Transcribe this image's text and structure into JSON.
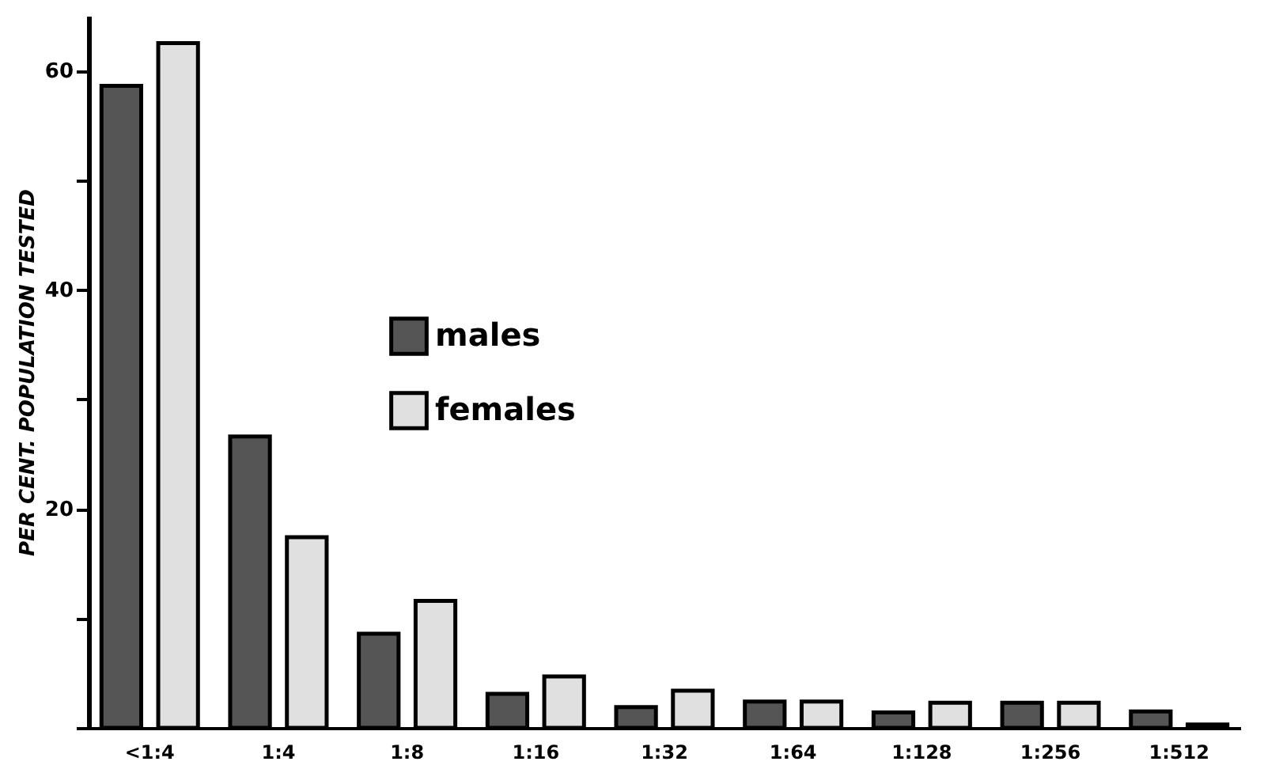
{
  "chart_data": {
    "type": "bar",
    "ylabel": "PER CENT. POPULATION TESTED",
    "categories": [
      "<1:4",
      "1:4",
      "1:8",
      "1:16",
      "1:32",
      "1:64",
      "1:128",
      "1:256",
      "1:512"
    ],
    "series": [
      {
        "name": "males",
        "color": "#555555",
        "values": [
          58.6,
          26.6,
          8.6,
          3.1,
          1.9,
          2.4,
          1.4,
          2.3,
          1.5
        ]
      },
      {
        "name": "females",
        "color": "#e0e0e0",
        "values": [
          62.5,
          17.4,
          11.6,
          4.7,
          3.4,
          2.4,
          2.3,
          2.3,
          0.3
        ]
      }
    ],
    "ylim": [
      0,
      65
    ],
    "yticks": [
      {
        "value": 0,
        "label": null
      },
      {
        "value": 10,
        "label": null
      },
      20,
      {
        "value": 30,
        "label": null
      },
      40,
      {
        "value": 50,
        "label": null
      },
      60
    ],
    "grid": false,
    "legend": "center"
  }
}
